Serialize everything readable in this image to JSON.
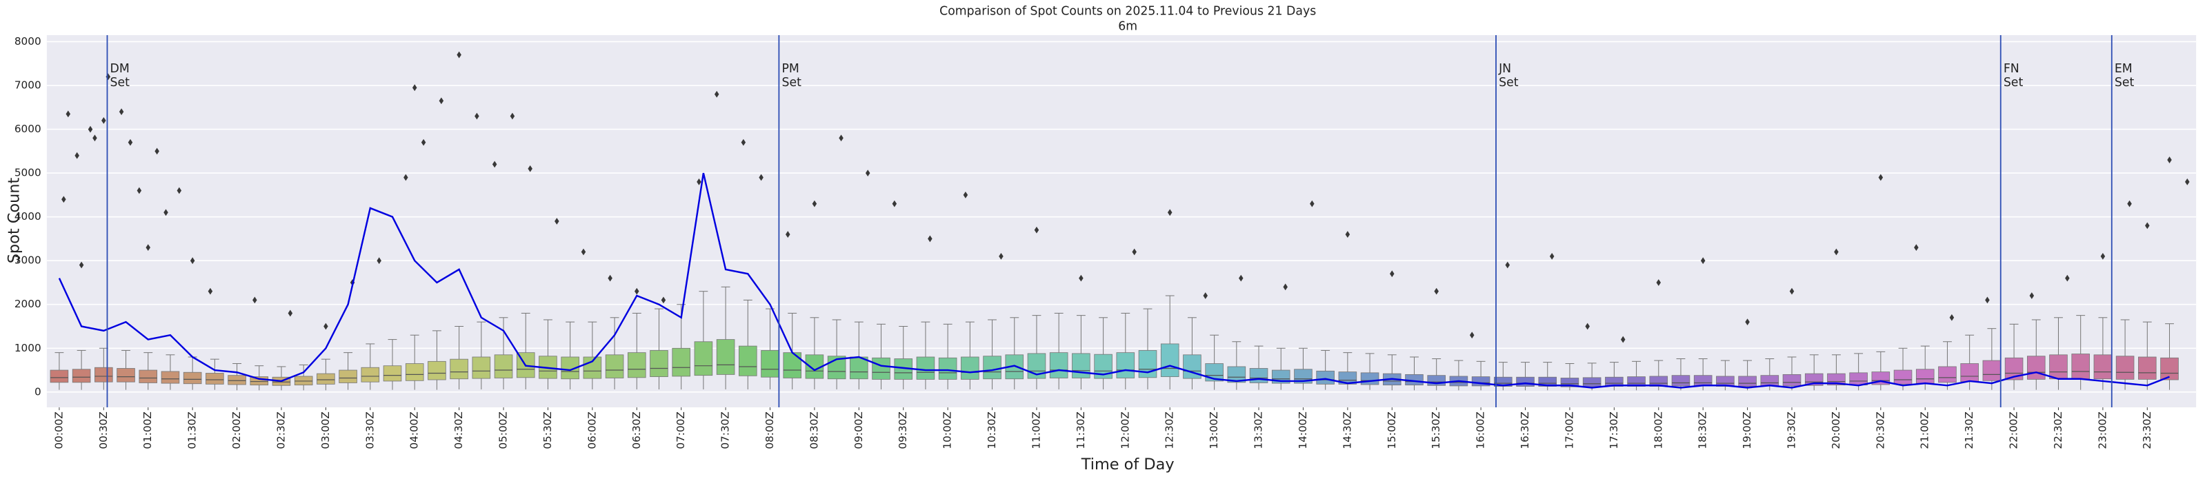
{
  "chart_data": {
    "type": "box",
    "title": "Comparison of Spot Counts on 2025.11.04 to Previous 21 Days",
    "subtitle": "6m",
    "x_label": "Time of Day",
    "y_label": "Spot Count",
    "xlim": [
      -0.14,
      24.05
    ],
    "ylim": [
      -350,
      8150
    ],
    "yticks": [
      0,
      1000,
      2000,
      3000,
      4000,
      5000,
      6000,
      7000,
      8000
    ],
    "xticks": [
      {
        "value": 0,
        "label": "00:00Z"
      },
      {
        "value": 0.5,
        "label": "00:30Z"
      },
      {
        "value": 1,
        "label": "01:00Z"
      },
      {
        "value": 1.5,
        "label": "01:30Z"
      },
      {
        "value": 2,
        "label": "02:00Z"
      },
      {
        "value": 2.5,
        "label": "02:30Z"
      },
      {
        "value": 3,
        "label": "03:00Z"
      },
      {
        "value": 3.5,
        "label": "03:30Z"
      },
      {
        "value": 4,
        "label": "04:00Z"
      },
      {
        "value": 4.5,
        "label": "04:30Z"
      },
      {
        "value": 5,
        "label": "05:00Z"
      },
      {
        "value": 5.5,
        "label": "05:30Z"
      },
      {
        "value": 6,
        "label": "06:00Z"
      },
      {
        "value": 6.5,
        "label": "06:30Z"
      },
      {
        "value": 7,
        "label": "07:00Z"
      },
      {
        "value": 7.5,
        "label": "07:30Z"
      },
      {
        "value": 8,
        "label": "08:00Z"
      },
      {
        "value": 8.5,
        "label": "08:30Z"
      },
      {
        "value": 9,
        "label": "09:00Z"
      },
      {
        "value": 9.5,
        "label": "09:30Z"
      },
      {
        "value": 10,
        "label": "10:00Z"
      },
      {
        "value": 10.5,
        "label": "10:30Z"
      },
      {
        "value": 11,
        "label": "11:00Z"
      },
      {
        "value": 11.5,
        "label": "11:30Z"
      },
      {
        "value": 12,
        "label": "12:00Z"
      },
      {
        "value": 12.5,
        "label": "12:30Z"
      },
      {
        "value": 13,
        "label": "13:00Z"
      },
      {
        "value": 13.5,
        "label": "13:30Z"
      },
      {
        "value": 14,
        "label": "14:00Z"
      },
      {
        "value": 14.5,
        "label": "14:30Z"
      },
      {
        "value": 15,
        "label": "15:00Z"
      },
      {
        "value": 15.5,
        "label": "15:30Z"
      },
      {
        "value": 16,
        "label": "16:00Z"
      },
      {
        "value": 16.5,
        "label": "16:30Z"
      },
      {
        "value": 17,
        "label": "17:00Z"
      },
      {
        "value": 17.5,
        "label": "17:30Z"
      },
      {
        "value": 18,
        "label": "18:00Z"
      },
      {
        "value": 18.5,
        "label": "18:30Z"
      },
      {
        "value": 19,
        "label": "19:00Z"
      },
      {
        "value": 19.5,
        "label": "19:30Z"
      },
      {
        "value": 20,
        "label": "20:00Z"
      },
      {
        "value": 20.5,
        "label": "20:30Z"
      },
      {
        "value": 21,
        "label": "21:00Z"
      },
      {
        "value": 21.5,
        "label": "21:30Z"
      },
      {
        "value": 22,
        "label": "22:00Z"
      },
      {
        "value": 22.5,
        "label": "22:30Z"
      },
      {
        "value": 23,
        "label": "23:00Z"
      },
      {
        "value": 23.5,
        "label": "23:30Z"
      }
    ],
    "grid": true,
    "palette": {
      "hue_start": 5,
      "hue_end": 340,
      "saturation": 42,
      "lightness": 62
    },
    "line_color": "#0000e0",
    "marker_color": "#383838",
    "event_color": "#2f4fb5",
    "x": [
      0,
      0.25,
      0.5,
      0.75,
      1,
      1.25,
      1.5,
      1.75,
      2,
      2.25,
      2.5,
      2.75,
      3,
      3.25,
      3.5,
      3.75,
      4,
      4.25,
      4.5,
      4.75,
      5,
      5.25,
      5.5,
      5.75,
      6,
      6.25,
      6.5,
      6.75,
      7,
      7.25,
      7.5,
      7.75,
      8,
      8.25,
      8.5,
      8.75,
      9,
      9.25,
      9.5,
      9.75,
      10,
      10.25,
      10.5,
      10.75,
      11,
      11.25,
      11.5,
      11.75,
      12,
      12.25,
      12.5,
      12.75,
      13,
      13.25,
      13.5,
      13.75,
      14,
      14.25,
      14.5,
      14.75,
      15,
      15.25,
      15.5,
      15.75,
      16,
      16.25,
      16.5,
      16.75,
      17,
      17.25,
      17.5,
      17.75,
      18,
      18.25,
      18.5,
      18.75,
      19,
      19.25,
      19.5,
      19.75,
      20,
      20.25,
      20.5,
      20.75,
      21,
      21.25,
      21.5,
      21.75,
      22,
      22.25,
      22.5,
      22.75,
      23,
      23.25,
      23.5,
      23.75
    ],
    "boxes": {
      "low": [
        50,
        50,
        50,
        50,
        50,
        50,
        50,
        50,
        40,
        40,
        40,
        40,
        40,
        50,
        50,
        50,
        50,
        50,
        60,
        60,
        60,
        60,
        60,
        60,
        60,
        60,
        60,
        60,
        60,
        60,
        60,
        60,
        60,
        60,
        60,
        60,
        60,
        60,
        60,
        60,
        60,
        60,
        60,
        60,
        60,
        60,
        60,
        60,
        60,
        60,
        60,
        60,
        50,
        50,
        50,
        50,
        50,
        50,
        50,
        50,
        40,
        40,
        40,
        40,
        40,
        40,
        40,
        40,
        40,
        40,
        40,
        40,
        40,
        40,
        40,
        40,
        40,
        40,
        40,
        40,
        40,
        40,
        40,
        40,
        50,
        50,
        50,
        50,
        50,
        50,
        50,
        50,
        50,
        50,
        50,
        50
      ],
      "q1": [
        220,
        220,
        230,
        230,
        210,
        200,
        190,
        180,
        170,
        160,
        150,
        160,
        180,
        210,
        230,
        250,
        260,
        280,
        300,
        310,
        320,
        330,
        310,
        300,
        310,
        320,
        330,
        350,
        360,
        380,
        400,
        370,
        340,
        320,
        310,
        300,
        300,
        290,
        290,
        290,
        290,
        290,
        300,
        300,
        310,
        320,
        320,
        310,
        320,
        330,
        350,
        310,
        250,
        220,
        210,
        200,
        200,
        180,
        180,
        170,
        160,
        160,
        150,
        140,
        140,
        130,
        130,
        130,
        120,
        120,
        130,
        130,
        130,
        140,
        140,
        130,
        130,
        140,
        140,
        150,
        160,
        160,
        170,
        180,
        200,
        220,
        240,
        260,
        280,
        290,
        300,
        300,
        300,
        290,
        290,
        280
      ],
      "median": [
        330,
        340,
        360,
        350,
        320,
        300,
        290,
        280,
        260,
        240,
        230,
        250,
        280,
        320,
        360,
        380,
        400,
        430,
        460,
        480,
        500,
        520,
        480,
        470,
        480,
        500,
        520,
        540,
        560,
        600,
        620,
        580,
        520,
        500,
        480,
        470,
        460,
        450,
        440,
        450,
        440,
        450,
        460,
        470,
        480,
        500,
        490,
        480,
        500,
        520,
        540,
        480,
        380,
        340,
        320,
        300,
        300,
        280,
        270,
        260,
        250,
        240,
        230,
        220,
        210,
        200,
        200,
        200,
        190,
        190,
        200,
        200,
        200,
        210,
        210,
        200,
        200,
        210,
        220,
        230,
        240,
        250,
        260,
        280,
        300,
        330,
        360,
        400,
        430,
        450,
        460,
        470,
        460,
        450,
        440,
        430
      ],
      "q3": [
        500,
        520,
        560,
        540,
        500,
        470,
        450,
        430,
        380,
        350,
        340,
        360,
        420,
        500,
        560,
        600,
        650,
        700,
        750,
        800,
        850,
        900,
        820,
        800,
        800,
        850,
        900,
        950,
        1000,
        1150,
        1200,
        1050,
        950,
        900,
        850,
        820,
        800,
        780,
        760,
        800,
        780,
        800,
        820,
        850,
        880,
        900,
        880,
        860,
        900,
        950,
        1100,
        850,
        650,
        580,
        540,
        500,
        520,
        480,
        460,
        440,
        420,
        400,
        380,
        360,
        350,
        340,
        340,
        340,
        320,
        330,
        340,
        350,
        360,
        380,
        380,
        360,
        360,
        380,
        400,
        420,
        420,
        440,
        460,
        500,
        520,
        580,
        650,
        720,
        780,
        820,
        850,
        870,
        850,
        820,
        800,
        780
      ],
      "high": [
        900,
        950,
        1000,
        950,
        900,
        850,
        800,
        750,
        650,
        600,
        580,
        620,
        750,
        900,
        1100,
        1200,
        1300,
        1400,
        1500,
        1600,
        1700,
        1800,
        1650,
        1600,
        1600,
        1700,
        1800,
        1900,
        2000,
        2300,
        2400,
        2100,
        1900,
        1800,
        1700,
        1650,
        1600,
        1550,
        1500,
        1600,
        1550,
        1600,
        1650,
        1700,
        1750,
        1800,
        1750,
        1700,
        1800,
        1900,
        2200,
        1700,
        1300,
        1150,
        1050,
        1000,
        1000,
        950,
        900,
        880,
        850,
        800,
        760,
        720,
        700,
        680,
        680,
        680,
        650,
        660,
        680,
        700,
        720,
        760,
        760,
        720,
        720,
        760,
        800,
        850,
        850,
        880,
        920,
        1000,
        1050,
        1150,
        1300,
        1450,
        1550,
        1650,
        1700,
        1750,
        1700,
        1650,
        1600,
        1560
      ]
    },
    "today": {
      "values": [
        2600,
        1500,
        1400,
        1600,
        1200,
        1300,
        800,
        500,
        450,
        300,
        250,
        450,
        1000,
        2000,
        4200,
        4000,
        3000,
        2500,
        2800,
        1700,
        1400,
        600,
        550,
        500,
        700,
        1300,
        2200,
        2000,
        1700,
        5000,
        2800,
        2700,
        2000,
        900,
        500,
        750,
        800,
        600,
        550,
        500,
        500,
        450,
        500,
        600,
        400,
        500,
        450,
        400,
        500,
        450,
        600,
        450,
        300,
        250,
        300,
        250,
        250,
        300,
        200,
        250,
        300,
        250,
        200,
        250,
        200,
        150,
        200,
        150,
        150,
        100,
        150,
        150,
        150,
        100,
        150,
        150,
        100,
        150,
        100,
        200,
        200,
        150,
        250,
        150,
        200,
        150,
        250,
        200,
        350,
        450,
        300,
        300,
        250,
        200,
        150,
        350
      ]
    },
    "outliers": {
      "x": [
        0.1,
        0.2,
        0.35,
        0.4,
        0.5,
        0.05,
        0.25,
        0.55,
        0.7,
        0.8,
        0.9,
        1.0,
        1.1,
        1.2,
        1.35,
        1.5,
        1.7,
        2.2,
        2.6,
        3.0,
        3.3,
        3.6,
        3.9,
        4.0,
        4.1,
        4.3,
        4.5,
        4.7,
        4.9,
        5.1,
        5.3,
        5.6,
        5.9,
        6.2,
        6.5,
        6.8,
        7.2,
        7.4,
        7.7,
        7.9,
        8.2,
        8.5,
        8.8,
        9.1,
        9.4,
        9.8,
        10.2,
        10.6,
        11.0,
        11.5,
        12.1,
        12.5,
        12.9,
        13.3,
        13.8,
        14.1,
        14.5,
        15.0,
        15.5,
        15.9,
        16.3,
        16.8,
        17.2,
        17.6,
        18.0,
        18.5,
        19.0,
        19.5,
        20.0,
        20.5,
        20.9,
        21.3,
        21.7,
        22.2,
        22.6,
        23.0,
        23.3,
        23.5,
        23.75,
        23.95
      ],
      "values": [
        6350,
        5400,
        6000,
        5800,
        6200,
        4400,
        2900,
        7200,
        6400,
        5700,
        4600,
        3300,
        5500,
        4100,
        4600,
        3000,
        2300,
        2100,
        1800,
        1500,
        2500,
        3000,
        4900,
        6950,
        5700,
        6650,
        7700,
        6300,
        5200,
        6300,
        5100,
        3900,
        3200,
        2600,
        2300,
        2100,
        4800,
        6800,
        5700,
        4900,
        3600,
        4300,
        5800,
        5000,
        4300,
        3500,
        4500,
        3100,
        3700,
        2600,
        3200,
        4100,
        2200,
        2600,
        2400,
        4300,
        3600,
        2700,
        2300,
        1300,
        2900,
        3100,
        1500,
        1200,
        2500,
        3000,
        1600,
        2300,
        3200,
        4900,
        3300,
        1700,
        2100,
        2200,
        2600,
        3100,
        4300,
        3800,
        5300,
        4800
      ]
    },
    "annotations": [
      {
        "x": 0.54,
        "lines": [
          "DM",
          "Set"
        ]
      },
      {
        "x": 8.1,
        "lines": [
          "PM",
          "Set"
        ]
      },
      {
        "x": 16.17,
        "lines": [
          "JN",
          "Set"
        ]
      },
      {
        "x": 21.85,
        "lines": [
          "FN",
          "Set"
        ]
      },
      {
        "x": 23.1,
        "lines": [
          "EM",
          "Set"
        ]
      }
    ]
  }
}
